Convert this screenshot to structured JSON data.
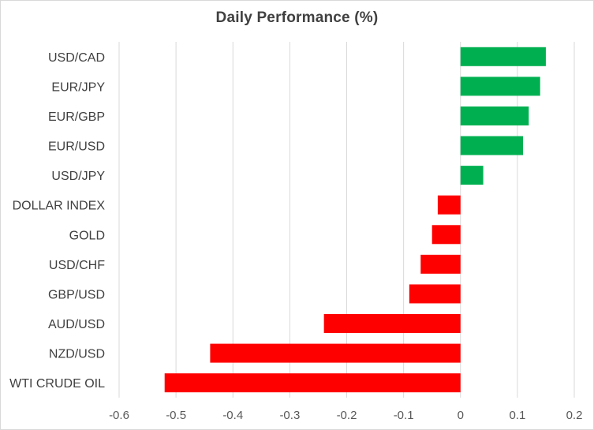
{
  "chart_data": {
    "type": "bar",
    "orientation": "horizontal",
    "title": "Daily Performance  (%)",
    "xlabel": "",
    "ylabel": "",
    "categories": [
      "USD/CAD",
      "EUR/JPY",
      "EUR/GBP",
      "EUR/USD",
      "USD/JPY",
      "DOLLAR INDEX",
      "GOLD",
      "USD/CHF",
      "GBP/USD",
      "AUD/USD",
      "NZD/USD",
      "WTI CRUDE OIL"
    ],
    "values": [
      0.15,
      0.14,
      0.12,
      0.11,
      0.04,
      -0.04,
      -0.05,
      -0.07,
      -0.09,
      -0.24,
      -0.44,
      -0.52
    ],
    "xlim": [
      -0.6,
      0.2
    ],
    "xticks": [
      -0.6,
      -0.5,
      -0.4,
      -0.3,
      -0.2,
      -0.1,
      0,
      0.1,
      0.2
    ],
    "xtick_labels": [
      "-0.6",
      "-0.5",
      "-0.4",
      "-0.3",
      "-0.2",
      "-0.1",
      "0",
      "0.1",
      "0.2"
    ],
    "grid": "vertical",
    "legend": "none",
    "colors": {
      "positive": "#00b050",
      "negative": "#ff0000",
      "gridline": "#d9d9d9"
    }
  }
}
